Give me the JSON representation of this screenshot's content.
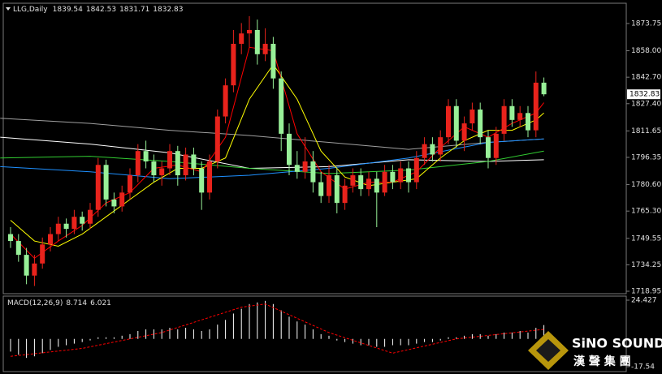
{
  "chart_data": [
    {
      "type": "candlestick",
      "title": "LLG,Daily",
      "up_color": "#e8231c",
      "down_color": "#98f098",
      "ylim": [
        1717.54,
        1885.46
      ],
      "yticks": [
        1873.75,
        {
          "value": 1858,
          "label": "1858.00"
        },
        {
          "value": 1842.7,
          "label": "1842.70"
        },
        {
          "value": 1827.4,
          "label": "1827.40"
        },
        1811.65,
        1796.35,
        {
          "value": 1780.6,
          "label": "1780.60"
        },
        {
          "value": 1765.3,
          "label": "1765.30"
        },
        1749.55,
        1734.25,
        1718.95
      ],
      "candles": [
        [
          1752,
          1756,
          1744,
          1748
        ],
        [
          1748,
          1752,
          1736,
          1740
        ],
        [
          1740,
          1744,
          1723,
          1728
        ],
        [
          1728,
          1740,
          1722,
          1735
        ],
        [
          1735,
          1750,
          1732,
          1746
        ],
        [
          1746,
          1756,
          1742,
          1752
        ],
        [
          1752,
          1762,
          1748,
          1758
        ],
        [
          1758,
          1761,
          1750,
          1755
        ],
        [
          1755,
          1766,
          1752,
          1762
        ],
        [
          1762,
          1765,
          1754,
          1758
        ],
        [
          1758,
          1770,
          1755,
          1766
        ],
        [
          1766,
          1796,
          1762,
          1792
        ],
        [
          1792,
          1795,
          1768,
          1772
        ],
        [
          1772,
          1776,
          1764,
          1768
        ],
        [
          1768,
          1780,
          1765,
          1776
        ],
        [
          1776,
          1790,
          1772,
          1786
        ],
        [
          1786,
          1804,
          1782,
          1800
        ],
        [
          1800,
          1806,
          1790,
          1794
        ],
        [
          1794,
          1798,
          1782,
          1786
        ],
        [
          1786,
          1794,
          1780,
          1790
        ],
        [
          1790,
          1804,
          1786,
          1800
        ],
        [
          1800,
          1803,
          1780,
          1786
        ],
        [
          1786,
          1802,
          1783,
          1798
        ],
        [
          1798,
          1802,
          1786,
          1790
        ],
        [
          1790,
          1794,
          1766,
          1776
        ],
        [
          1776,
          1798,
          1772,
          1794
        ],
        [
          1794,
          1824,
          1790,
          1820
        ],
        [
          1820,
          1842,
          1816,
          1838
        ],
        [
          1838,
          1870,
          1834,
          1862
        ],
        [
          1862,
          1874,
          1856,
          1868
        ],
        [
          1868,
          1878,
          1860,
          1870
        ],
        [
          1870,
          1876,
          1850,
          1856
        ],
        [
          1856,
          1871,
          1852,
          1862
        ],
        [
          1862,
          1866,
          1836,
          1842
        ],
        [
          1842,
          1846,
          1800,
          1810
        ],
        [
          1810,
          1816,
          1786,
          1792
        ],
        [
          1792,
          1800,
          1784,
          1788
        ],
        [
          1788,
          1808,
          1784,
          1794
        ],
        [
          1794,
          1800,
          1776,
          1782
        ],
        [
          1782,
          1788,
          1770,
          1774
        ],
        [
          1774,
          1792,
          1770,
          1786
        ],
        [
          1786,
          1790,
          1764,
          1770
        ],
        [
          1770,
          1784,
          1766,
          1780
        ],
        [
          1780,
          1790,
          1776,
          1786
        ],
        [
          1786,
          1790,
          1774,
          1778
        ],
        [
          1778,
          1788,
          1774,
          1784
        ],
        [
          1784,
          1788,
          1756,
          1776
        ],
        [
          1776,
          1792,
          1774,
          1788
        ],
        [
          1788,
          1792,
          1778,
          1782
        ],
        [
          1782,
          1794,
          1778,
          1790
        ],
        [
          1790,
          1794,
          1776,
          1782
        ],
        [
          1782,
          1800,
          1778,
          1796
        ],
        [
          1796,
          1808,
          1792,
          1804
        ],
        [
          1804,
          1808,
          1794,
          1798
        ],
        [
          1798,
          1812,
          1794,
          1808
        ],
        [
          1808,
          1830,
          1804,
          1826
        ],
        [
          1826,
          1830,
          1802,
          1806
        ],
        [
          1806,
          1820,
          1800,
          1816
        ],
        [
          1816,
          1828,
          1812,
          1824
        ],
        [
          1824,
          1828,
          1804,
          1808
        ],
        [
          1808,
          1812,
          1790,
          1796
        ],
        [
          1796,
          1814,
          1792,
          1810
        ],
        [
          1810,
          1830,
          1806,
          1826
        ],
        [
          1826,
          1830,
          1814,
          1818
        ],
        [
          1818,
          1826,
          1814,
          1822
        ],
        [
          1822,
          1826,
          1808,
          1812
        ],
        [
          1812,
          1846,
          1808,
          1839.54
        ],
        [
          1839.54,
          1842.53,
          1831.71,
          1832.83
        ]
      ],
      "series": [
        {
          "color": "#a0a0a0",
          "x": [
            -1.3,
            10,
            20,
            30,
            40,
            50,
            60,
            67
          ],
          "values": [
            1819,
            1816,
            1812,
            1809,
            1805,
            1801,
            1805,
            1807
          ]
        },
        {
          "color": "#ffffff",
          "x": [
            -1.3,
            10,
            20,
            30,
            40,
            50,
            60,
            67
          ],
          "values": [
            1808,
            1804,
            1799,
            1790,
            1791,
            1795,
            1794,
            1795
          ]
        },
        {
          "color": "#32cd32",
          "x": [
            -1.3,
            10,
            20,
            30,
            40,
            50,
            60,
            67
          ],
          "values": [
            1796,
            1797,
            1794,
            1790,
            1787,
            1789,
            1794,
            1800
          ]
        },
        {
          "color": "#1e90ff",
          "x": [
            -1.3,
            10,
            20,
            30,
            40,
            50,
            60,
            67
          ],
          "values": [
            1791,
            1788,
            1784,
            1786,
            1790,
            1796,
            1805,
            1807
          ]
        },
        {
          "color": "#ffff00",
          "x": [
            0,
            3,
            6,
            9,
            12,
            15,
            18,
            21,
            24,
            27,
            30,
            33,
            36,
            39,
            42,
            45,
            48,
            51,
            54,
            57,
            60,
            63,
            66,
            67
          ],
          "values": [
            1760,
            1748,
            1745,
            1752,
            1762,
            1772,
            1782,
            1790,
            1790,
            1796,
            1830,
            1850,
            1830,
            1800,
            1785,
            1780,
            1782,
            1784,
            1796,
            1806,
            1812,
            1812,
            1818,
            1822
          ]
        },
        {
          "color": "#ff0000",
          "x": [
            0,
            3,
            6,
            9,
            12,
            15,
            18,
            21,
            24,
            27,
            30,
            33,
            36,
            39,
            42,
            45,
            48,
            51,
            54,
            57,
            60,
            63,
            66,
            67
          ],
          "values": [
            1752,
            1738,
            1748,
            1757,
            1770,
            1776,
            1790,
            1792,
            1788,
            1808,
            1860,
            1858,
            1810,
            1788,
            1778,
            1782,
            1782,
            1788,
            1802,
            1814,
            1808,
            1816,
            1822,
            1828
          ]
        }
      ]
    },
    {
      "type": "macd",
      "title": "MACD(12,26,9)",
      "ylim": [
        -17.54,
        24.427
      ],
      "yticks": [
        24.427,
        -17.54
      ],
      "series": [
        {
          "color": "#ffffff",
          "values": [
            -8,
            -10,
            -12,
            -11,
            -9,
            -7,
            -5,
            -4,
            -3,
            -2,
            -1,
            1,
            1,
            1,
            2,
            3,
            5,
            6,
            6,
            6,
            7,
            6,
            7,
            6,
            5,
            6,
            9,
            12,
            16,
            19,
            22,
            23,
            24,
            22,
            18,
            14,
            11,
            9,
            6,
            3,
            2,
            -1,
            -2,
            -3,
            -4,
            -4,
            -5,
            -5,
            -4,
            -4,
            -4,
            -3,
            -2,
            -2,
            -1,
            1,
            1,
            2,
            3,
            3,
            2,
            3,
            4,
            4,
            5,
            4,
            7,
            8.714
          ]
        },
        {
          "color": "#ff0000",
          "x": [
            0,
            9,
            19,
            29,
            32,
            40,
            48,
            56,
            67
          ],
          "values": [
            -11,
            -6,
            4,
            20,
            22,
            4,
            -9,
            0,
            6.021
          ]
        }
      ]
    }
  ],
  "watermark": {
    "name": "SiNO SOUND",
    "subtitle": "漢 聲 集 團"
  }
}
